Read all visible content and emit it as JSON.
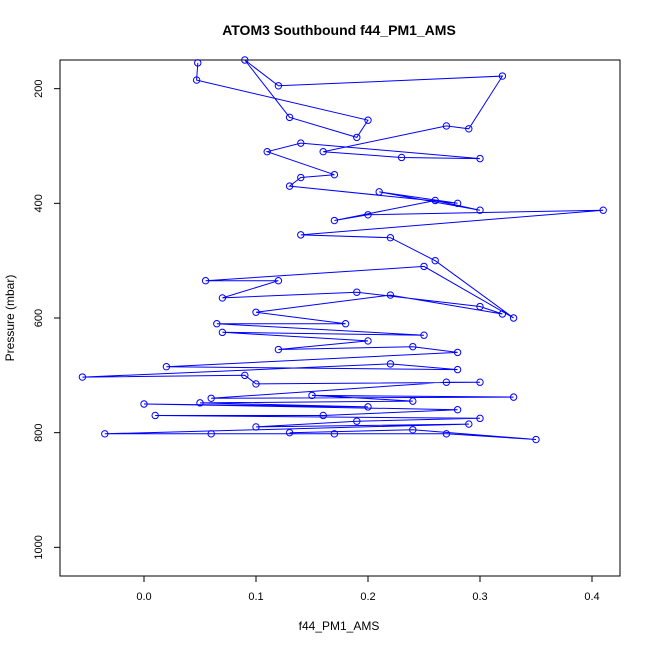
{
  "chart_data": {
    "type": "line",
    "title": "ATOM3 Southbound f44_PM1_AMS",
    "xlabel": "f44_PM1_AMS",
    "ylabel": "Pressure (mbar)",
    "xlim": [
      -0.075,
      0.425
    ],
    "ylim": [
      1050,
      150
    ],
    "y_reversed": true,
    "x_ticks": [
      0.0,
      0.1,
      0.2,
      0.3,
      0.4
    ],
    "x_tick_labels": [
      "0.0",
      "0.1",
      "0.2",
      "0.3",
      "0.4"
    ],
    "y_ticks": [
      200,
      400,
      600,
      800,
      1000
    ],
    "y_tick_labels": [
      "200",
      "400",
      "600",
      "800",
      "1000"
    ],
    "grid": false,
    "legend": "none",
    "series": [
      {
        "color": "#0000ff",
        "marker": "open-circle",
        "points": [
          [
            0.048,
            155
          ],
          [
            0.047,
            185
          ],
          [
            0.2,
            255
          ],
          [
            0.19,
            285
          ],
          [
            0.13,
            250
          ],
          [
            0.09,
            150
          ],
          [
            0.12,
            195
          ],
          [
            0.32,
            178
          ],
          [
            0.29,
            270
          ],
          [
            0.27,
            265
          ],
          [
            0.16,
            310
          ],
          [
            0.23,
            320
          ],
          [
            0.3,
            322
          ],
          [
            0.14,
            295
          ],
          [
            0.11,
            310
          ],
          [
            0.17,
            350
          ],
          [
            0.14,
            355
          ],
          [
            0.13,
            370
          ],
          [
            0.28,
            400
          ],
          [
            0.21,
            380
          ],
          [
            0.3,
            412
          ],
          [
            0.26,
            395
          ],
          [
            0.17,
            430
          ],
          [
            0.2,
            420
          ],
          [
            0.41,
            412
          ],
          [
            0.14,
            455
          ],
          [
            0.22,
            460
          ],
          [
            0.26,
            500
          ],
          [
            0.33,
            600
          ],
          [
            0.25,
            510
          ],
          [
            0.055,
            535
          ],
          [
            0.12,
            535
          ],
          [
            0.07,
            565
          ],
          [
            0.19,
            555
          ],
          [
            0.3,
            580
          ],
          [
            0.32,
            593
          ],
          [
            0.22,
            560
          ],
          [
            0.1,
            590
          ],
          [
            0.18,
            610
          ],
          [
            0.065,
            610
          ],
          [
            0.25,
            630
          ],
          [
            0.07,
            625
          ],
          [
            0.2,
            640
          ],
          [
            0.12,
            655
          ],
          [
            0.24,
            650
          ],
          [
            0.28,
            660
          ],
          [
            0.02,
            685
          ],
          [
            0.28,
            690
          ],
          [
            0.22,
            680
          ],
          [
            -0.055,
            703
          ],
          [
            0.09,
            700
          ],
          [
            0.1,
            715
          ],
          [
            0.3,
            712
          ],
          [
            0.27,
            712
          ],
          [
            0.06,
            740
          ],
          [
            0.33,
            738
          ],
          [
            0.15,
            735
          ],
          [
            0.24,
            745
          ],
          [
            0.05,
            748
          ],
          [
            0.2,
            755
          ],
          [
            0.0,
            750
          ],
          [
            0.28,
            760
          ],
          [
            0.16,
            770
          ],
          [
            0.01,
            770
          ],
          [
            0.3,
            775
          ],
          [
            0.19,
            780
          ],
          [
            0.1,
            790
          ],
          [
            0.29,
            785
          ],
          [
            -0.035,
            802
          ],
          [
            0.06,
            802
          ],
          [
            0.17,
            802
          ],
          [
            0.27,
            802
          ],
          [
            0.35,
            812
          ],
          [
            0.24,
            795
          ],
          [
            0.13,
            800
          ]
        ]
      }
    ]
  }
}
